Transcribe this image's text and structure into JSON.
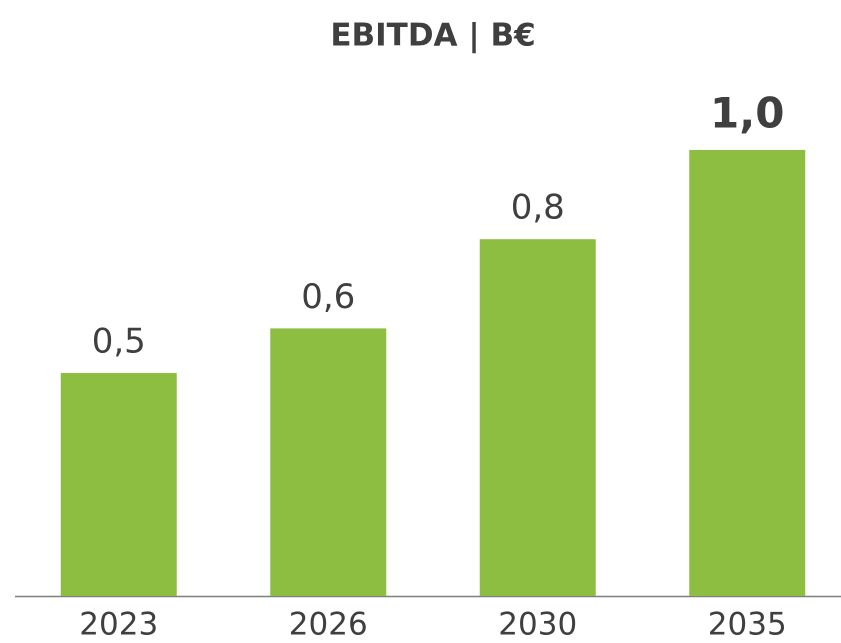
{
  "chart_data": {
    "type": "bar",
    "title": "EBITDA | B€",
    "categories": [
      "2023",
      "2026",
      "2030",
      "2035"
    ],
    "values": [
      0.5,
      0.6,
      0.8,
      1.0
    ],
    "value_labels": [
      "0,5",
      "0,6",
      "0,8",
      "1,0"
    ],
    "color": "#8dbe41",
    "ylim": [
      0,
      1
    ]
  }
}
